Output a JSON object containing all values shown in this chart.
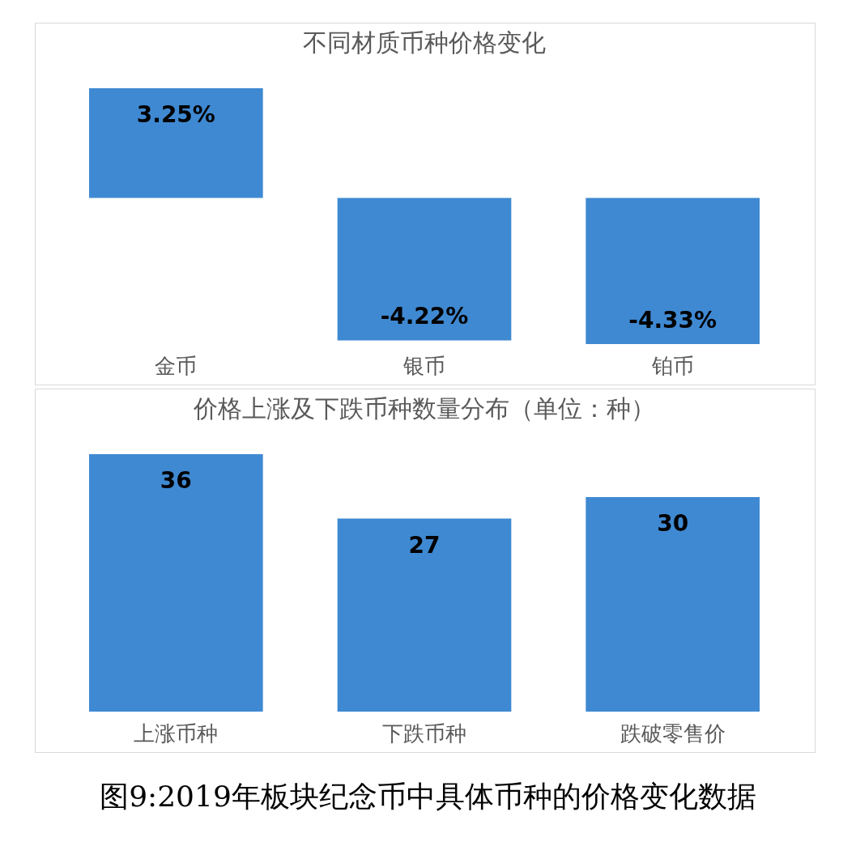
{
  "chart_data": [
    {
      "type": "bar",
      "title": "不同材质币种价格变化",
      "categories": [
        "金币",
        "银币",
        "铂币"
      ],
      "values": [
        3.25,
        -4.22,
        -4.33
      ],
      "value_labels": [
        "3.25%",
        "-4.22%",
        "-4.33%"
      ],
      "color": "#3f89d2"
    },
    {
      "type": "bar",
      "title": "价格上涨及下跌币种数量分布（单位：种）",
      "categories": [
        "上涨币种",
        "下跌币种",
        "跌破零售价"
      ],
      "values": [
        36,
        27,
        30
      ],
      "data_labels": true,
      "color": "#3f89d2",
      "annotations": [
        "图9:2019年板块纪念币中具体币种的价格变化数据"
      ]
    }
  ]
}
